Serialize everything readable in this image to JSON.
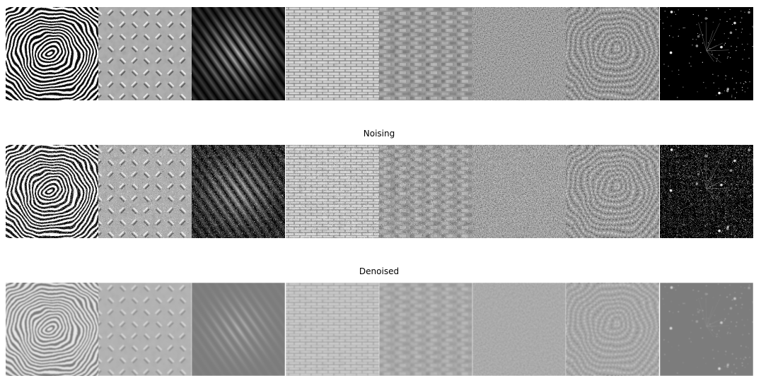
{
  "row_titles": [
    "Noising",
    "Denoised"
  ]
}
